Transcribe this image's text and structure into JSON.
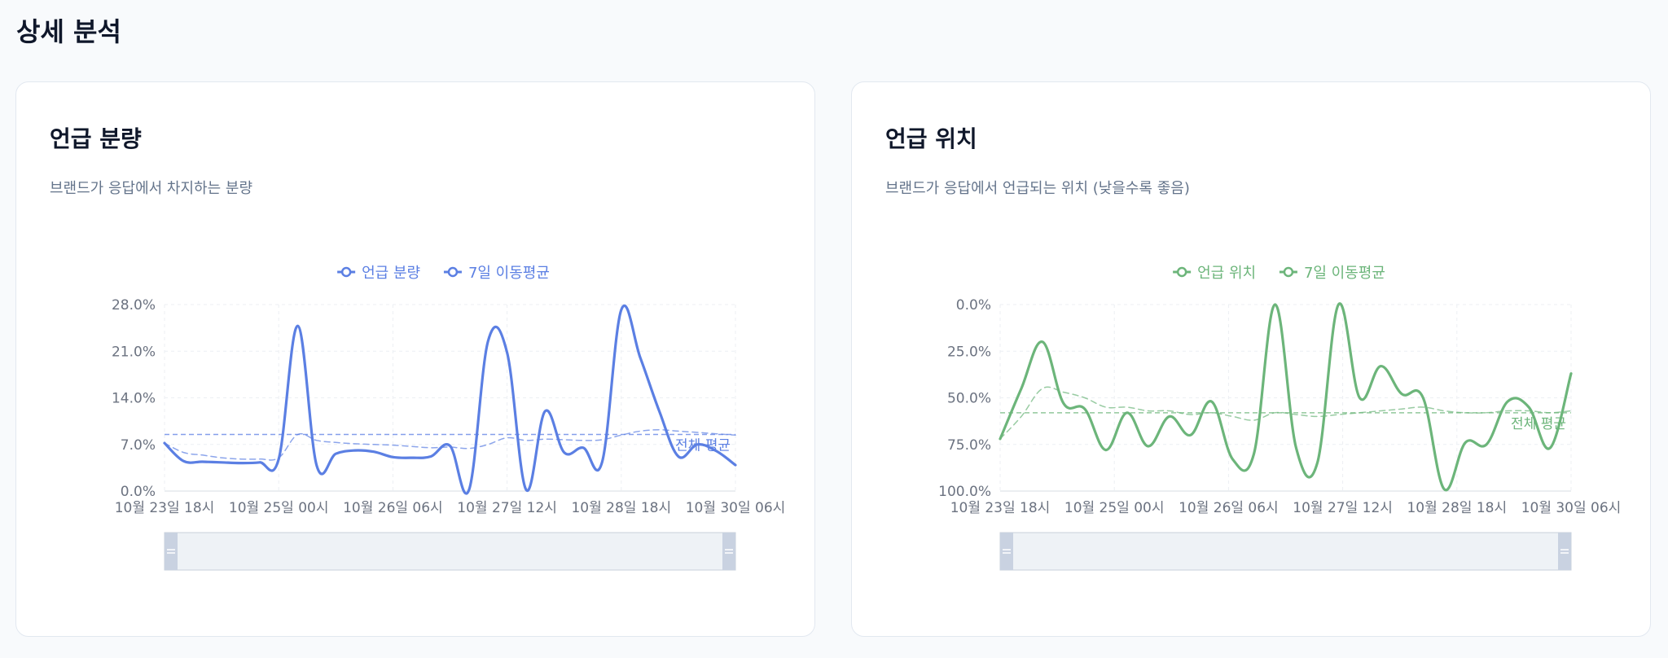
{
  "page": {
    "title": "상세 분석"
  },
  "cards": [
    {
      "title": "언급 분량",
      "subtitle": "브랜드가 응답에서 차지하는 분량",
      "color": "#5b7fe3",
      "chart_data": {
        "type": "line",
        "title": "언급 분량",
        "ylim": [
          0,
          28
        ],
        "y_ticks": [
          "0.0%",
          "7.0%",
          "14.0%",
          "21.0%",
          "28.0%"
        ],
        "y_tick_values": [
          0,
          7,
          14,
          21,
          28
        ],
        "x_ticks": [
          "10월 23일 18시",
          "10월 25일 00시",
          "10월 26일 06시",
          "10월 27일 12시",
          "10월 28일 18시",
          "10월 30일 06시"
        ],
        "legend": [
          "언급 분량",
          "7일 이동평균"
        ],
        "legend_position": "top",
        "grid": true,
        "average": {
          "label": "전체 평균",
          "value": 8.5
        },
        "series": [
          {
            "name": "언급 분량",
            "values": [
              7.2,
              4.5,
              4.4,
              4.3,
              4.2,
              4.3,
              4.8,
              24.8,
              3.8,
              5.6,
              6.1,
              5.9,
              5.1,
              5.0,
              5.2,
              6.8,
              0.2,
              22.5,
              20.8,
              0.2,
              12.0,
              5.8,
              6.5,
              4.4,
              27.2,
              20.0,
              12.0,
              5.2,
              7.0,
              6.0,
              3.9
            ]
          },
          {
            "name": "7일 이동평균",
            "dashed": true,
            "values": [
              7.2,
              5.8,
              5.4,
              5.0,
              4.8,
              4.8,
              5.0,
              8.5,
              7.6,
              7.3,
              7.1,
              7.0,
              6.9,
              6.7,
              6.5,
              6.6,
              6.4,
              7.0,
              8.0,
              7.6,
              7.8,
              7.7,
              7.6,
              7.7,
              8.4,
              9.0,
              9.2,
              9.0,
              8.8,
              8.6,
              8.4
            ]
          }
        ]
      }
    },
    {
      "title": "언급 위치",
      "subtitle": "브랜드가 응답에서 언급되는 위치 (낮을수록 좋음)",
      "color": "#6cb57a",
      "chart_data": {
        "type": "line",
        "title": "언급 위치",
        "ylim": [
          0,
          100
        ],
        "y_inverted": true,
        "y_ticks": [
          "0.0%",
          "25.0%",
          "50.0%",
          "75.0%",
          "100.0%"
        ],
        "y_tick_values": [
          0,
          25,
          50,
          75,
          100
        ],
        "x_ticks": [
          "10월 23일 18시",
          "10월 25일 00시",
          "10월 26일 06시",
          "10월 27일 12시",
          "10월 28일 18시",
          "10월 30일 06시"
        ],
        "legend": [
          "언급 위치",
          "7일 이동평균"
        ],
        "legend_position": "top",
        "grid": true,
        "average": {
          "label": "전체 평균",
          "value": 58
        },
        "series": [
          {
            "name": "언급 위치",
            "values": [
              72,
              45,
              20,
              53,
              56,
              78,
              58,
              76,
              60,
              70,
              52,
              83,
              80,
              0,
              77,
              85,
              0,
              50,
              33,
              48,
              50,
              99,
              74,
              75,
              52,
              55,
              77,
              37
            ]
          },
          {
            "name": "7일 이동평균",
            "dashed": true,
            "values": [
              72,
              60,
              45,
              47,
              50,
              55,
              55,
              57,
              57,
              59,
              58,
              60,
              62,
              58,
              59,
              60,
              59,
              58,
              57,
              56,
              55,
              57,
              58,
              58,
              57,
              57,
              58,
              57
            ]
          }
        ]
      }
    }
  ]
}
